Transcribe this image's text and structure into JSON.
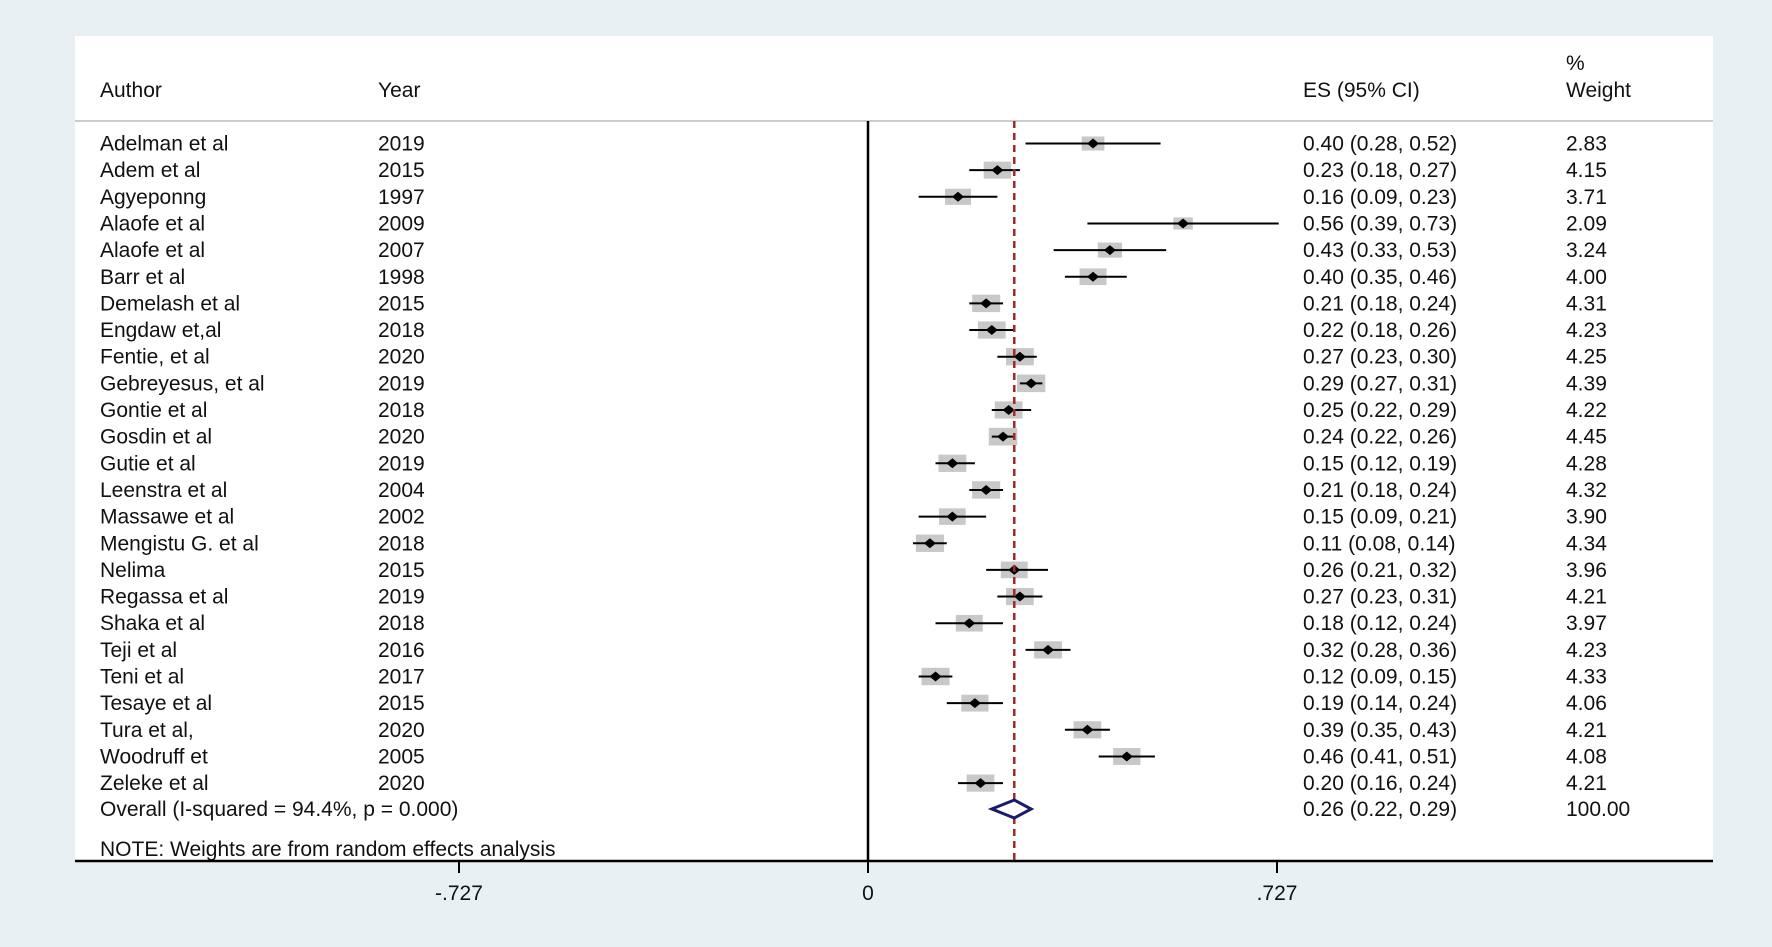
{
  "chart_data": {
    "type": "forest",
    "headers": {
      "author": "Author",
      "year": "Year",
      "es": "ES (95% CI)",
      "weight_line1": "%",
      "weight_line2": "Weight"
    },
    "studies": [
      {
        "author": "Adelman et al",
        "year": "2019",
        "es": 0.4,
        "lo": 0.28,
        "hi": 0.52,
        "weight": 2.83,
        "label": "0.40 (0.28, 0.52)",
        "weight_label": "2.83"
      },
      {
        "author": "Adem et al",
        "year": "2015",
        "es": 0.23,
        "lo": 0.18,
        "hi": 0.27,
        "weight": 4.15,
        "label": "0.23 (0.18, 0.27)",
        "weight_label": "4.15"
      },
      {
        "author": "Agyeponng",
        "year": "1997",
        "es": 0.16,
        "lo": 0.09,
        "hi": 0.23,
        "weight": 3.71,
        "label": "0.16 (0.09, 0.23)",
        "weight_label": "3.71"
      },
      {
        "author": "Alaofe et al",
        "year": "2009",
        "es": 0.56,
        "lo": 0.39,
        "hi": 0.73,
        "weight": 2.09,
        "label": "0.56 (0.39, 0.73)",
        "weight_label": "2.09"
      },
      {
        "author": "Alaofe et al",
        "year": "2007",
        "es": 0.43,
        "lo": 0.33,
        "hi": 0.53,
        "weight": 3.24,
        "label": "0.43 (0.33, 0.53)",
        "weight_label": "3.24"
      },
      {
        "author": "Barr et al",
        "year": "1998",
        "es": 0.4,
        "lo": 0.35,
        "hi": 0.46,
        "weight": 4.0,
        "label": "0.40 (0.35, 0.46)",
        "weight_label": "4.00"
      },
      {
        "author": "Demelash et al",
        "year": "2015",
        "es": 0.21,
        "lo": 0.18,
        "hi": 0.24,
        "weight": 4.31,
        "label": "0.21 (0.18, 0.24)",
        "weight_label": "4.31"
      },
      {
        "author": "Engdaw et,al",
        "year": "2018",
        "es": 0.22,
        "lo": 0.18,
        "hi": 0.26,
        "weight": 4.23,
        "label": "0.22 (0.18, 0.26)",
        "weight_label": "4.23"
      },
      {
        "author": "Fentie, et al",
        "year": "2020",
        "es": 0.27,
        "lo": 0.23,
        "hi": 0.3,
        "weight": 4.25,
        "label": "0.27 (0.23, 0.30)",
        "weight_label": "4.25"
      },
      {
        "author": "Gebreyesus, et al",
        "year": "2019",
        "es": 0.29,
        "lo": 0.27,
        "hi": 0.31,
        "weight": 4.39,
        "label": "0.29 (0.27, 0.31)",
        "weight_label": "4.39"
      },
      {
        "author": "Gontie et al",
        "year": "2018",
        "es": 0.25,
        "lo": 0.22,
        "hi": 0.29,
        "weight": 4.22,
        "label": "0.25 (0.22, 0.29)",
        "weight_label": "4.22"
      },
      {
        "author": "Gosdin et al",
        "year": "2020",
        "es": 0.24,
        "lo": 0.22,
        "hi": 0.26,
        "weight": 4.45,
        "label": "0.24 (0.22, 0.26)",
        "weight_label": "4.45"
      },
      {
        "author": "Gutie et al",
        "year": "2019",
        "es": 0.15,
        "lo": 0.12,
        "hi": 0.19,
        "weight": 4.28,
        "label": "0.15 (0.12, 0.19)",
        "weight_label": "4.28"
      },
      {
        "author": "Leenstra et al",
        "year": "2004",
        "es": 0.21,
        "lo": 0.18,
        "hi": 0.24,
        "weight": 4.32,
        "label": "0.21 (0.18, 0.24)",
        "weight_label": "4.32"
      },
      {
        "author": "Massawe et al",
        "year": "2002",
        "es": 0.15,
        "lo": 0.09,
        "hi": 0.21,
        "weight": 3.9,
        "label": "0.15 (0.09, 0.21)",
        "weight_label": "3.90"
      },
      {
        "author": "Mengistu G. et al",
        "year": "2018",
        "es": 0.11,
        "lo": 0.08,
        "hi": 0.14,
        "weight": 4.34,
        "label": "0.11 (0.08, 0.14)",
        "weight_label": "4.34"
      },
      {
        "author": "Nelima",
        "year": "2015",
        "es": 0.26,
        "lo": 0.21,
        "hi": 0.32,
        "weight": 3.96,
        "label": "0.26 (0.21, 0.32)",
        "weight_label": "3.96"
      },
      {
        "author": "Regassa et al",
        "year": "2019",
        "es": 0.27,
        "lo": 0.23,
        "hi": 0.31,
        "weight": 4.21,
        "label": "0.27 (0.23, 0.31)",
        "weight_label": "4.21"
      },
      {
        "author": "Shaka et al",
        "year": "2018",
        "es": 0.18,
        "lo": 0.12,
        "hi": 0.24,
        "weight": 3.97,
        "label": "0.18 (0.12, 0.24)",
        "weight_label": "3.97"
      },
      {
        "author": "Teji et al",
        "year": "2016",
        "es": 0.32,
        "lo": 0.28,
        "hi": 0.36,
        "weight": 4.23,
        "label": "0.32 (0.28, 0.36)",
        "weight_label": "4.23"
      },
      {
        "author": "Teni et al",
        "year": "2017",
        "es": 0.12,
        "lo": 0.09,
        "hi": 0.15,
        "weight": 4.33,
        "label": "0.12 (0.09, 0.15)",
        "weight_label": "4.33"
      },
      {
        "author": "Tesaye et al",
        "year": "2015",
        "es": 0.19,
        "lo": 0.14,
        "hi": 0.24,
        "weight": 4.06,
        "label": "0.19 (0.14, 0.24)",
        "weight_label": "4.06"
      },
      {
        "author": "Tura et al,",
        "year": "2020",
        "es": 0.39,
        "lo": 0.35,
        "hi": 0.43,
        "weight": 4.21,
        "label": "0.39 (0.35, 0.43)",
        "weight_label": "4.21"
      },
      {
        "author": "Woodruff et",
        "year": "2005",
        "es": 0.46,
        "lo": 0.41,
        "hi": 0.51,
        "weight": 4.08,
        "label": "0.46 (0.41, 0.51)",
        "weight_label": "4.08"
      },
      {
        "author": "Zeleke et al",
        "year": "2020",
        "es": 0.2,
        "lo": 0.16,
        "hi": 0.24,
        "weight": 4.21,
        "label": "0.20 (0.16, 0.24)",
        "weight_label": "4.21"
      }
    ],
    "overall": {
      "label": "Overall  (I-squared = 94.4%, p = 0.000)",
      "es": 0.26,
      "lo": 0.22,
      "hi": 0.29,
      "es_label": "0.26 (0.22, 0.29)",
      "weight_label": "100.00"
    },
    "note": "NOTE: Weights are from random effects analysis",
    "x_ticks": [
      {
        "value": -0.727,
        "label": "-.727"
      },
      {
        "value": 0,
        "label": "0"
      },
      {
        "value": 0.727,
        "label": ".727"
      }
    ],
    "null_line": 0,
    "colors": {
      "background": "#e8f0f3",
      "panel": "#ffffff",
      "overall_line": "#a02828",
      "diamond": "#1a1a6e",
      "weight_box": "#c8c8c8",
      "point": "#000000"
    }
  }
}
